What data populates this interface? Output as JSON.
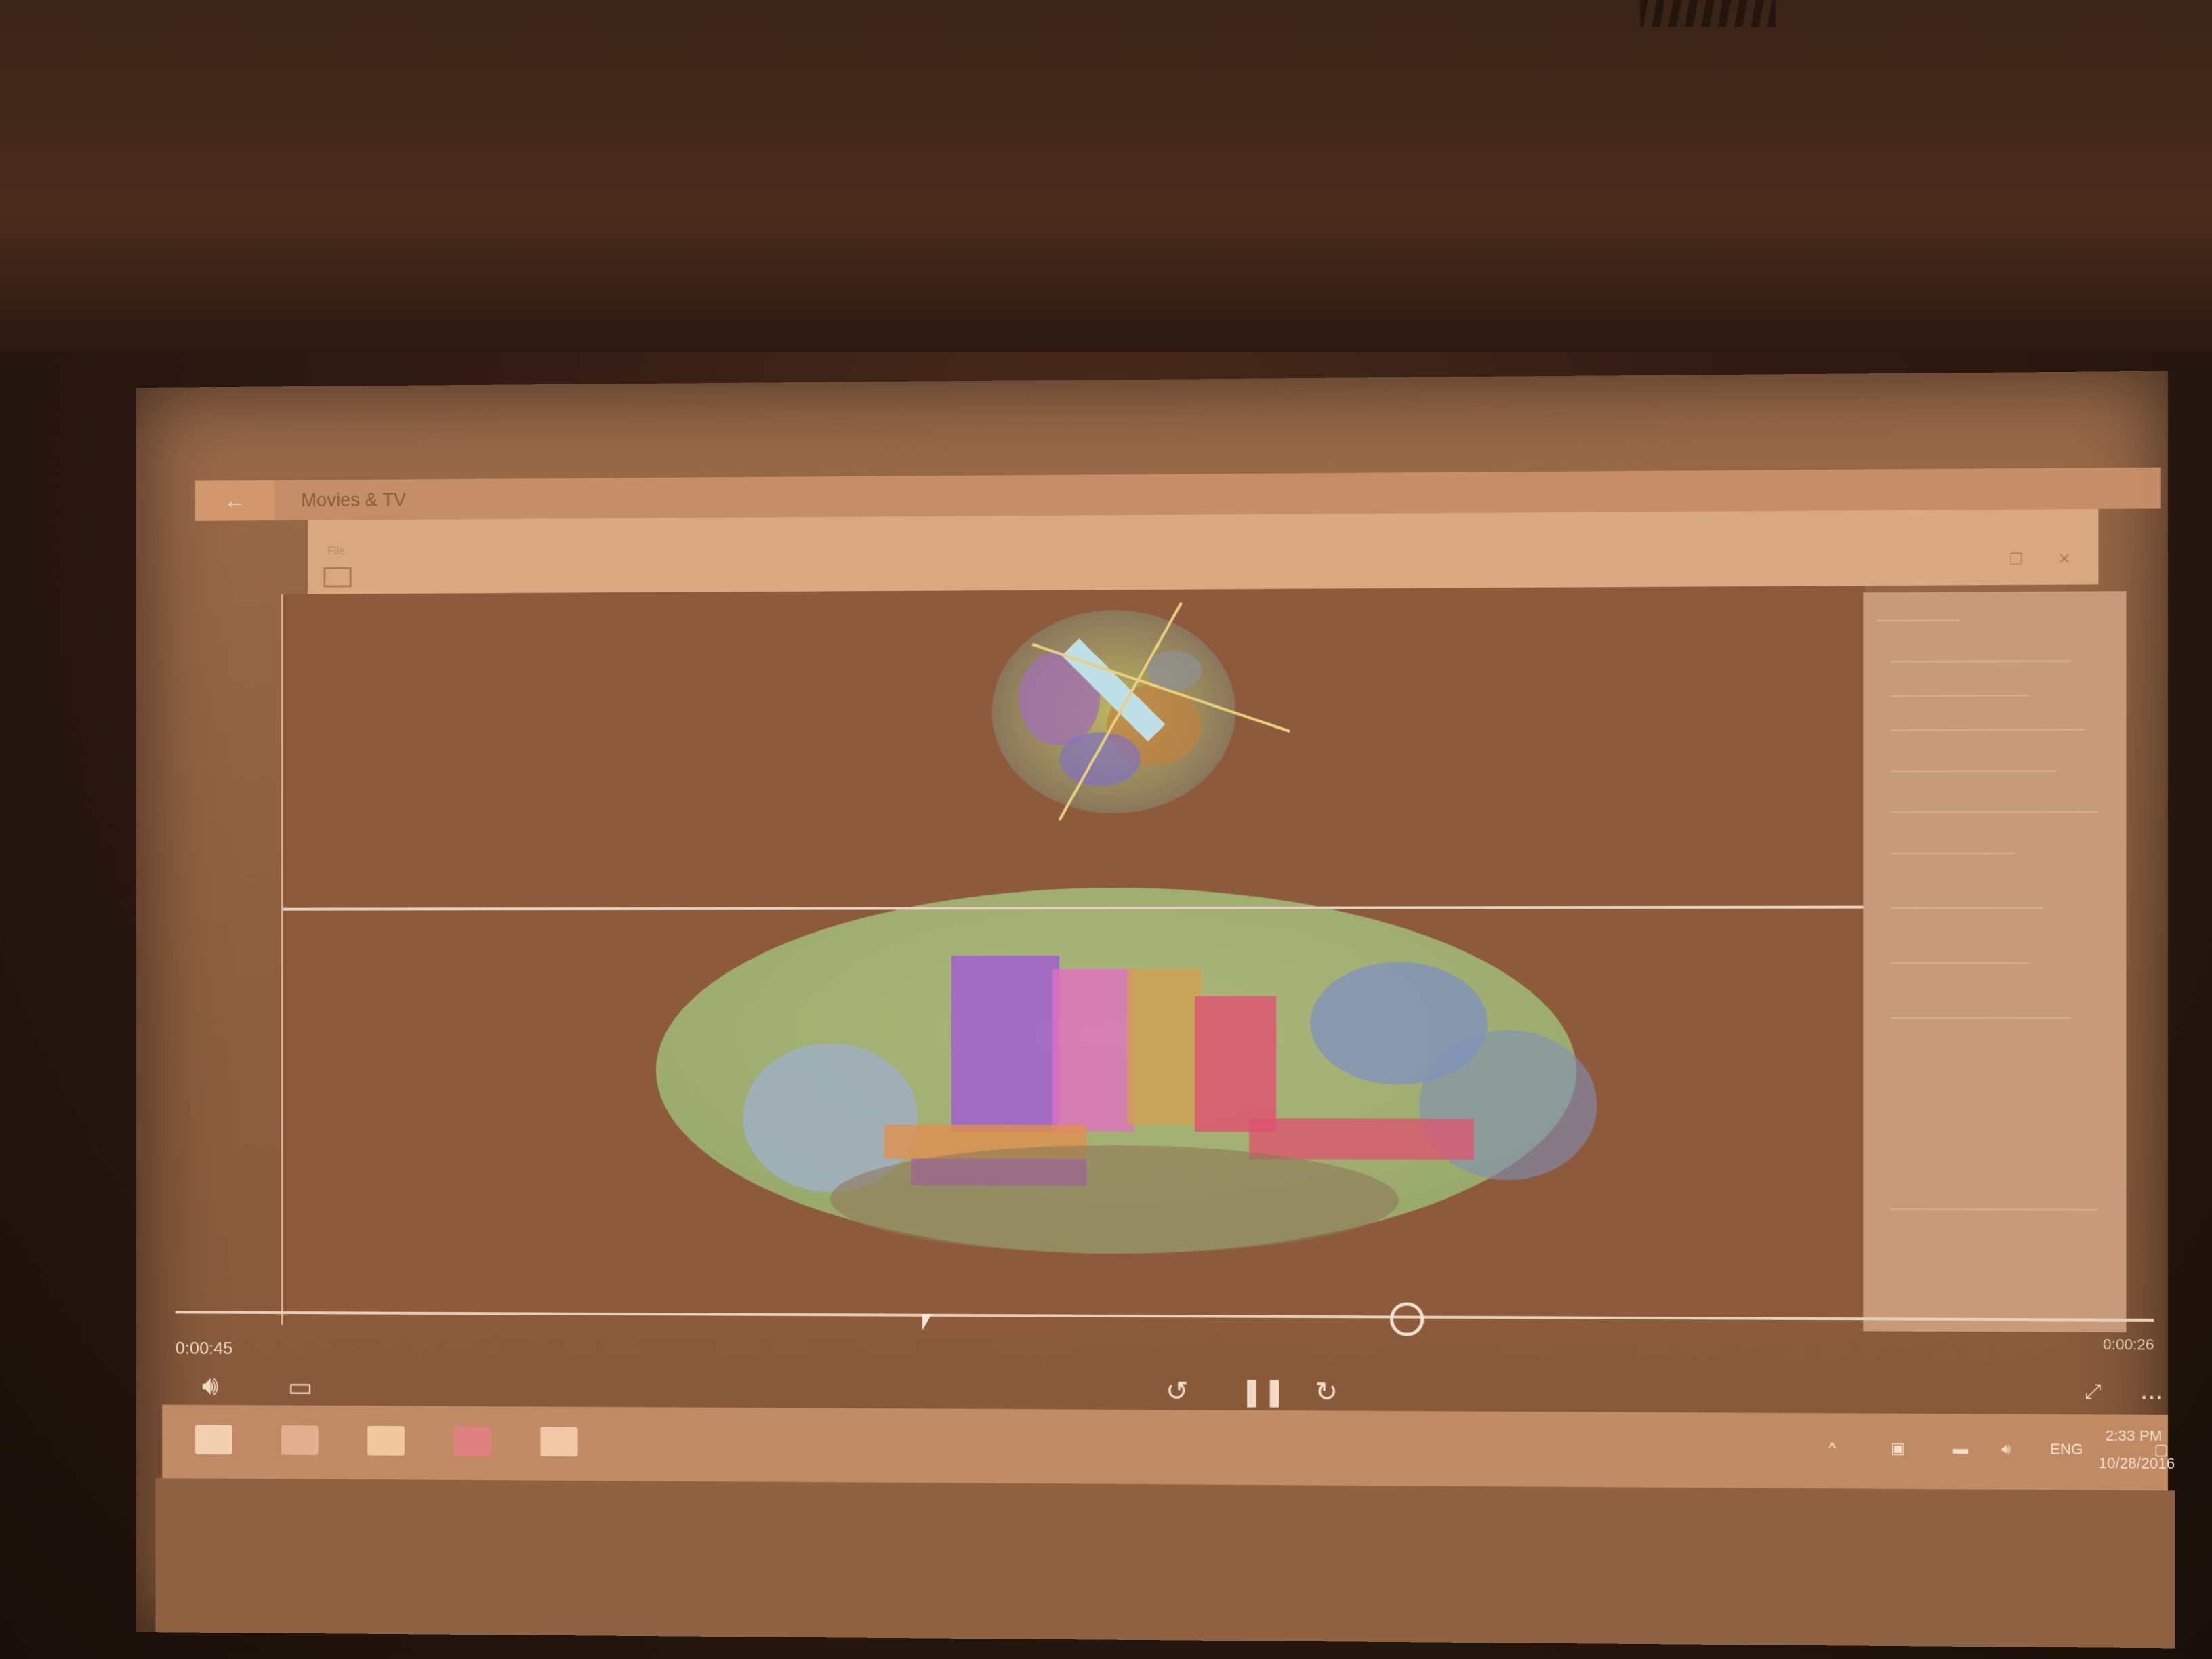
{
  "app": {
    "back_label": "←",
    "title": "Movies & TV"
  },
  "inner_window": {
    "app_name": "",
    "menu": [
      "File",
      "",
      "",
      "",
      ""
    ]
  },
  "player": {
    "elapsed": "0:00:45",
    "remaining": "0:00:26",
    "progress": 0.63,
    "volume_icon": "speaker-icon",
    "captions_icon": "captions-icon",
    "rewind_icon": "rewind-icon",
    "pause_icon": "pause-icon",
    "forward_icon": "forward-icon",
    "fullscreen_icon": "fullscreen-icon",
    "more_label": "..."
  },
  "taskbar": {
    "lang": "ENG",
    "time": "2:33 PM",
    "date": "10/28/2016"
  },
  "colors": {
    "screen": "#8c5e3e",
    "viewport": "#8e5a3c",
    "title_bar": "#c8906a"
  }
}
